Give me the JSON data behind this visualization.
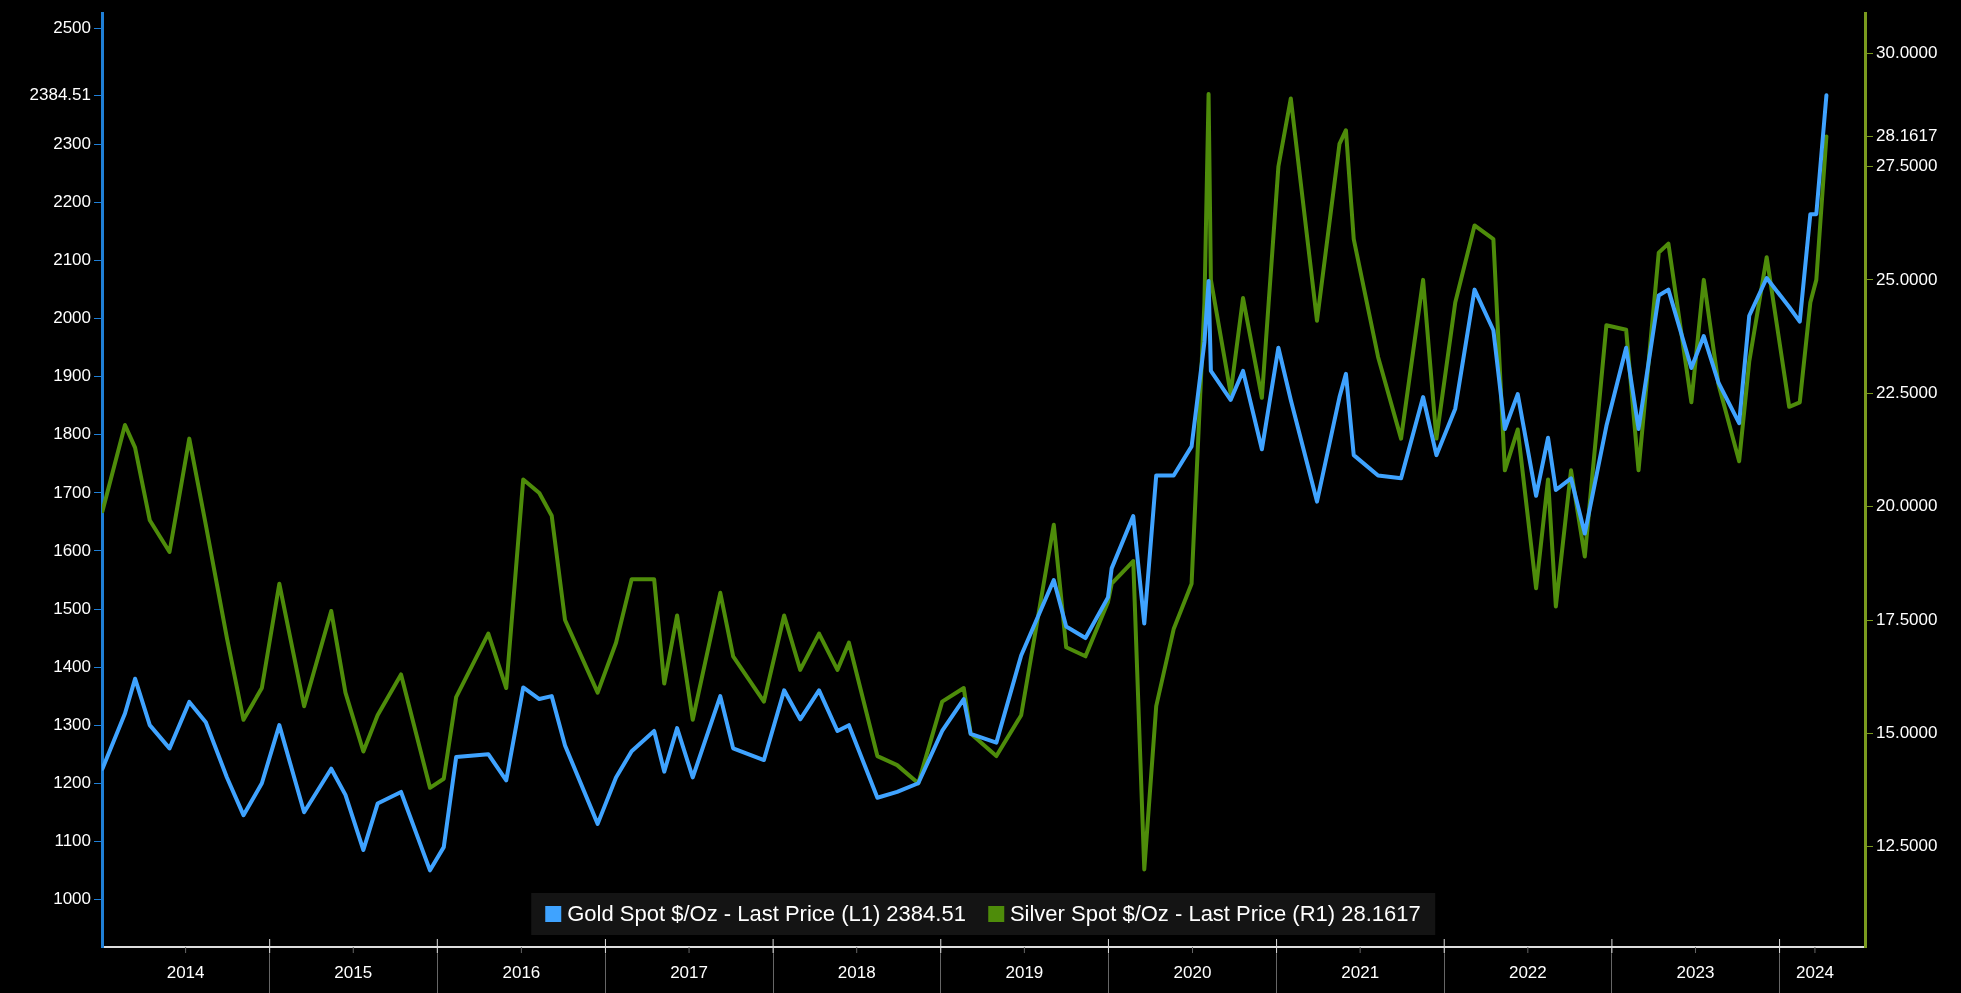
{
  "chart_data": {
    "type": "line",
    "x": [
      "2014-01-02",
      "2014-02-20",
      "2014-03-14",
      "2014-04-15",
      "2014-05-28",
      "2014-07-10",
      "2014-08-15",
      "2014-09-30",
      "2014-11-05",
      "2014-12-15",
      "2015-01-22",
      "2015-03-17",
      "2015-05-15",
      "2015-06-15",
      "2015-07-24",
      "2015-08-24",
      "2015-10-14",
      "2015-12-16",
      "2016-01-15",
      "2016-02-11",
      "2016-04-21",
      "2016-05-30",
      "2016-07-06",
      "2016-08-10",
      "2016-09-06",
      "2016-10-05",
      "2016-12-15",
      "2017-01-24",
      "2017-02-27",
      "2017-04-17",
      "2017-05-09",
      "2017-06-06",
      "2017-07-10",
      "2017-09-08",
      "2017-10-06",
      "2017-12-12",
      "2018-01-25",
      "2018-03-01",
      "2018-04-11",
      "2018-05-21",
      "2018-06-15",
      "2018-08-16",
      "2018-09-28",
      "2018-11-13",
      "2019-01-04",
      "2019-02-20",
      "2019-03-07",
      "2019-05-02",
      "2019-06-25",
      "2019-09-04",
      "2019-10-01",
      "2019-11-12",
      "2019-12-31",
      "2020-01-08",
      "2020-02-24",
      "2020-03-19",
      "2020-04-14",
      "2020-05-22",
      "2020-06-30",
      "2020-07-28",
      "2020-08-06",
      "2020-08-11",
      "2020-09-23",
      "2020-10-20",
      "2020-11-30",
      "2021-01-05",
      "2021-02-01",
      "2021-03-30",
      "2021-05-18",
      "2021-06-01",
      "2021-06-18",
      "2021-08-10",
      "2021-09-29",
      "2021-11-16",
      "2021-12-15",
      "2022-01-25",
      "2022-03-08",
      "2022-04-18",
      "2022-05-13",
      "2022-06-10",
      "2022-07-20",
      "2022-08-15",
      "2022-09-01",
      "2022-10-04",
      "2022-11-03",
      "2022-12-20",
      "2023-02-01",
      "2023-02-28",
      "2023-04-13",
      "2023-05-04",
      "2023-06-23",
      "2023-07-20",
      "2023-08-21",
      "2023-10-05",
      "2023-10-27",
      "2023-12-04",
      "2024-01-22",
      "2024-02-14",
      "2024-03-08",
      "2024-03-21",
      "2024-04-12"
    ],
    "series": [
      {
        "name": "Gold Spot $/Oz - Last Price (L1) 2384.51",
        "color": "#3fa3ff",
        "values": [
          1225,
          1320,
          1380,
          1300,
          1260,
          1340,
          1305,
          1210,
          1145,
          1200,
          1300,
          1150,
          1225,
          1180,
          1085,
          1165,
          1185,
          1050,
          1090,
          1245,
          1250,
          1205,
          1365,
          1345,
          1350,
          1265,
          1130,
          1210,
          1255,
          1290,
          1220,
          1295,
          1210,
          1350,
          1260,
          1240,
          1360,
          1310,
          1360,
          1290,
          1300,
          1175,
          1185,
          1200,
          1290,
          1345,
          1285,
          1270,
          1420,
          1550,
          1470,
          1450,
          1520,
          1570,
          1660,
          1475,
          1730,
          1730,
          1780,
          1960,
          2065,
          1910,
          1860,
          1910,
          1775,
          1950,
          1860,
          1685,
          1865,
          1905,
          1765,
          1730,
          1725,
          1865,
          1765,
          1845,
          2050,
          1980,
          1810,
          1870,
          1695,
          1795,
          1705,
          1725,
          1630,
          1815,
          1950,
          1810,
          2040,
          2050,
          1915,
          1970,
          1890,
          1820,
          2005,
          2070,
          2020,
          1995,
          2180,
          2180,
          2384.51
        ]
      },
      {
        "name": "Silver Spot $/Oz - Last Price (R1) 28.1617",
        "color": "#4e8c0a",
        "axis": "y2",
        "values": [
          19.9,
          21.8,
          21.3,
          19.7,
          19.0,
          21.5,
          19.6,
          17.1,
          15.3,
          16.0,
          18.3,
          15.6,
          17.7,
          15.9,
          14.6,
          15.4,
          16.3,
          13.8,
          14.0,
          15.8,
          17.2,
          16.0,
          20.6,
          20.3,
          19.8,
          17.5,
          15.9,
          17.0,
          18.4,
          18.4,
          16.1,
          17.6,
          15.3,
          18.1,
          16.7,
          15.7,
          17.6,
          16.4,
          17.2,
          16.4,
          17.0,
          14.5,
          14.3,
          13.9,
          15.7,
          16.0,
          15.0,
          14.5,
          15.4,
          19.6,
          16.9,
          16.7,
          17.9,
          18.3,
          18.8,
          12.0,
          15.6,
          17.3,
          18.3,
          24.5,
          29.1,
          25.0,
          22.5,
          24.6,
          22.4,
          27.5,
          29.0,
          24.1,
          28.0,
          28.3,
          25.9,
          23.3,
          21.5,
          25.0,
          21.5,
          24.5,
          26.2,
          25.9,
          20.8,
          21.7,
          18.2,
          20.6,
          17.8,
          20.8,
          18.9,
          24.0,
          23.9,
          20.8,
          25.6,
          25.8,
          22.3,
          25.0,
          22.7,
          21.0,
          23.2,
          25.5,
          22.2,
          22.3,
          24.5,
          25.0,
          28.1617
        ]
      }
    ],
    "xlim": [
      "2014-01-01",
      "2024-07-05"
    ],
    "xticks": [
      {
        "value": "2014-07-02",
        "label": "2014"
      },
      {
        "value": "2015-01-01",
        "label": null
      },
      {
        "value": "2015-07-02",
        "label": "2015"
      },
      {
        "value": "2016-01-01",
        "label": null
      },
      {
        "value": "2016-07-02",
        "label": "2016"
      },
      {
        "value": "2017-01-01",
        "label": null
      },
      {
        "value": "2017-07-02",
        "label": "2017"
      },
      {
        "value": "2018-01-01",
        "label": null
      },
      {
        "value": "2018-07-02",
        "label": "2018"
      },
      {
        "value": "2019-01-01",
        "label": null
      },
      {
        "value": "2019-07-02",
        "label": "2019"
      },
      {
        "value": "2020-01-01",
        "label": null
      },
      {
        "value": "2020-07-02",
        "label": "2020"
      },
      {
        "value": "2021-01-01",
        "label": null
      },
      {
        "value": "2021-07-02",
        "label": "2021"
      },
      {
        "value": "2022-01-01",
        "label": null
      },
      {
        "value": "2022-07-02",
        "label": "2022"
      },
      {
        "value": "2023-01-01",
        "label": null
      },
      {
        "value": "2023-07-02",
        "label": "2023"
      },
      {
        "value": "2024-01-01",
        "label": null
      },
      {
        "value": "2024-03-18",
        "label": "2024"
      }
    ],
    "ylim": [
      918,
      2526
    ],
    "yticks": [
      1000,
      1100,
      1200,
      1300,
      1400,
      1500,
      1600,
      1700,
      1800,
      1900,
      2000,
      2100,
      2200,
      2300,
      {
        "value": 2384.51,
        "label": "2384.51"
      },
      2500
    ],
    "y2lim": [
      10.29,
      30.88
    ],
    "y2ticks": [
      {
        "value": 12.5,
        "label": "12.5000"
      },
      {
        "value": 15,
        "label": "15.0000"
      },
      {
        "value": 17.5,
        "label": "17.5000"
      },
      {
        "value": 20,
        "label": "20.0000"
      },
      {
        "value": 22.5,
        "label": "22.5000"
      },
      {
        "value": 25,
        "label": "25.0000"
      },
      {
        "value": 27.5,
        "label": "27.5000"
      },
      {
        "value": 28.1617,
        "label": "28.1617"
      },
      {
        "value": 30,
        "label": "30.0000"
      }
    ],
    "legend": "bottom",
    "marker": "none",
    "line_style": "solid"
  }
}
